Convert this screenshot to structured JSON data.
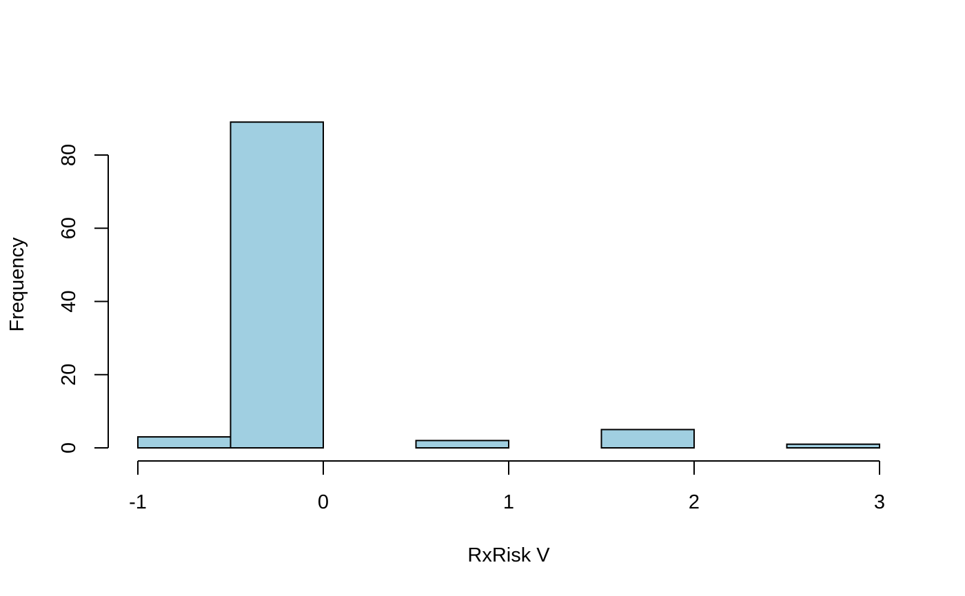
{
  "chart_data": {
    "type": "bar",
    "title": "",
    "xlabel": "RxRisk V",
    "ylabel": "Frequency",
    "bins": [
      {
        "x0": -1.0,
        "x1": -0.5,
        "count": 3
      },
      {
        "x0": -0.5,
        "x1": 0.0,
        "count": 89
      },
      {
        "x0": 0.0,
        "x1": 0.5,
        "count": 0
      },
      {
        "x0": 0.5,
        "x1": 1.0,
        "count": 2
      },
      {
        "x0": 1.0,
        "x1": 1.5,
        "count": 0
      },
      {
        "x0": 1.5,
        "x1": 2.0,
        "count": 5
      },
      {
        "x0": 2.0,
        "x1": 2.5,
        "count": 0
      },
      {
        "x0": 2.5,
        "x1": 3.0,
        "count": 1
      }
    ],
    "xlim": [
      -1,
      3
    ],
    "ylim": [
      0,
      89
    ],
    "x_ticks": [
      -1,
      0,
      1,
      2,
      3
    ],
    "x_tick_labels": [
      "-1",
      "0",
      "1",
      "2",
      "3"
    ],
    "y_ticks": [
      0,
      20,
      40,
      60,
      80
    ],
    "y_tick_labels": [
      "0",
      "20",
      "40",
      "60",
      "80"
    ],
    "grid": false,
    "legend": "none",
    "colors": {
      "bar_fill": "#a0cfe1",
      "bar_stroke": "#000000",
      "axis": "#000000",
      "background": "#ffffff"
    }
  }
}
